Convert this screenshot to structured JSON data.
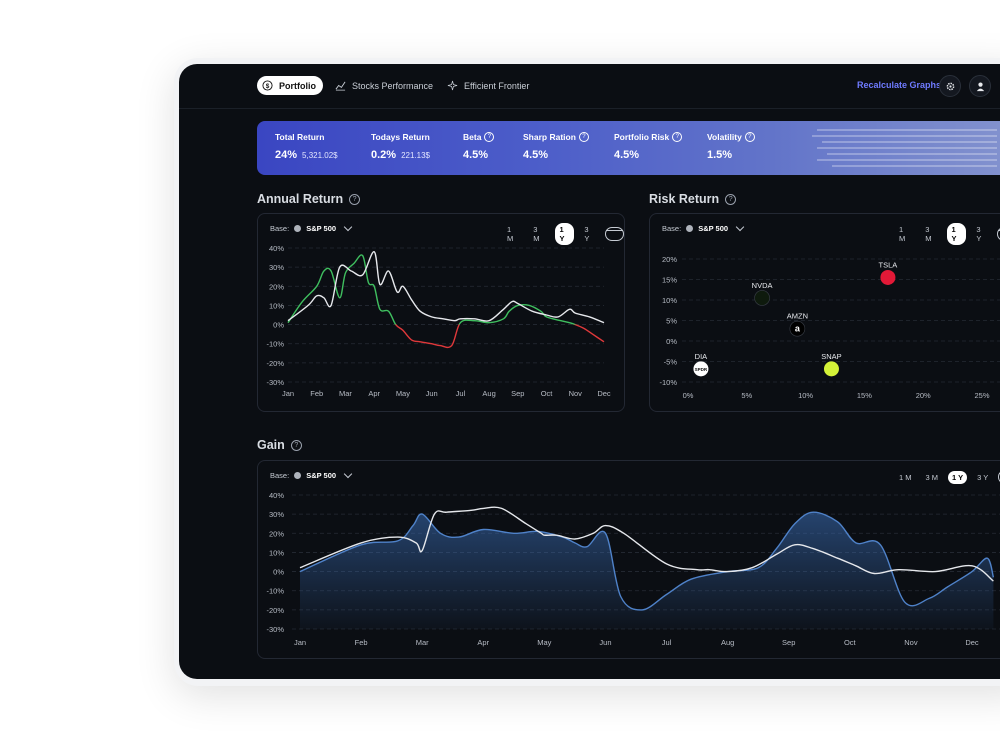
{
  "nav": {
    "tabs": [
      {
        "label": "Portfolio",
        "icon": "dollar-circle-icon",
        "active": true
      },
      {
        "label": "Stocks Performance",
        "icon": "line-chart-icon",
        "active": false
      },
      {
        "label": "Efficient Frontier",
        "icon": "sparkle-icon",
        "active": false
      }
    ],
    "recalculate_label": "Recalculate Graphs",
    "settings_icon": "gear-icon",
    "profile_icon": "user-icon"
  },
  "stats": [
    {
      "label": "Total Return",
      "value": "24%",
      "sub": "5,321.02$",
      "help": false
    },
    {
      "label": "Todays Return",
      "value": "0.2%",
      "sub": "221.13$",
      "help": false
    },
    {
      "label": "Beta",
      "value": "4.5%",
      "sub": "",
      "help": true
    },
    {
      "label": "Sharp Ration",
      "value": "4.5%",
      "sub": "",
      "help": true
    },
    {
      "label": "Portfolio Risk",
      "value": "4.5%",
      "sub": "",
      "help": true
    },
    {
      "label": "Volatility",
      "value": "1.5%",
      "sub": "",
      "help": true
    }
  ],
  "colors": {
    "accent": "#6f7bff",
    "positive": "#3fbf5f",
    "negative": "#e0383a",
    "white_line": "#e6e8ec",
    "gain_area": "#3b6fb8",
    "banner_start": "#3a46c2",
    "banner_end": "#8897cf"
  },
  "annual_return": {
    "title": "Annual Return",
    "base_label": "Base:",
    "base_value": "S&P 500",
    "ranges": [
      "1 M",
      "3 M",
      "1 Y",
      "3 Y"
    ],
    "selected_range": "1 Y"
  },
  "risk_return": {
    "title": "Risk Return",
    "base_label": "Base:",
    "base_value": "S&P 500",
    "ranges": [
      "1 M",
      "3 M",
      "1 Y",
      "3 Y"
    ],
    "selected_range": "1 Y"
  },
  "gain": {
    "title": "Gain",
    "base_label": "Base:",
    "base_value": "S&P 500",
    "ranges": [
      "1 M",
      "3 M",
      "1 Y",
      "3 Y"
    ],
    "selected_range": "1 Y"
  },
  "chart_data": [
    {
      "type": "line",
      "title": "Annual Return",
      "categories": [
        "Jan",
        "Feb",
        "Mar",
        "Apr",
        "May",
        "Jun",
        "Jul",
        "Aug",
        "Sep",
        "Oct",
        "Nov",
        "Dec"
      ],
      "y_ticks": [
        "40%",
        "30%",
        "20%",
        "10%",
        "0%",
        "-10%",
        "-20%",
        "-30%"
      ],
      "ylim": [
        -30,
        40
      ],
      "grid": true,
      "series": [
        {
          "role": "portfolio",
          "x": [
            0,
            0.5,
            1,
            1.25,
            1.5,
            1.8,
            2,
            2.3,
            2.6,
            2.8,
            3,
            3.2,
            3.5,
            3.75,
            4,
            4.3,
            4.6,
            5,
            5.3,
            5.7,
            6,
            6.5,
            7,
            7.5,
            7.7,
            8,
            8.4,
            8.8,
            9,
            9.5,
            9.8,
            10,
            10.3,
            10.6,
            11
          ],
          "values": [
            1,
            12,
            20,
            28,
            28,
            14,
            27,
            32,
            36,
            22,
            20,
            8,
            7,
            0,
            -3,
            -8,
            -9,
            -10,
            -11,
            -11,
            1,
            2,
            1,
            3,
            7,
            10,
            10,
            7,
            4,
            2,
            1,
            0,
            -2,
            -5,
            -9
          ]
        },
        {
          "role": "base",
          "x": [
            0,
            0.7,
            1,
            1.25,
            1.5,
            1.8,
            2.2,
            2.6,
            3,
            3.2,
            3.5,
            3.8,
            4,
            4.3,
            4.6,
            5,
            5.4,
            5.8,
            6,
            6.5,
            7,
            7.5,
            7.8,
            8,
            8.5,
            9,
            9.4,
            9.8,
            10,
            10.5,
            11
          ],
          "values": [
            2,
            10,
            15,
            14,
            10,
            30,
            28,
            26,
            38,
            21,
            28,
            17,
            20,
            13,
            7,
            4,
            3,
            2,
            3,
            3,
            2,
            8,
            12,
            11,
            7,
            5,
            4,
            8,
            6,
            4,
            1
          ]
        }
      ]
    },
    {
      "type": "scatter",
      "title": "Risk Return",
      "x_ticks": [
        "0%",
        "5%",
        "10%",
        "15%",
        "20%",
        "25%"
      ],
      "y_ticks": [
        "20%",
        "15%",
        "10%",
        "5%",
        "0%",
        "-5%",
        "-10%"
      ],
      "xlim": [
        0,
        25
      ],
      "ylim": [
        -10,
        20
      ],
      "grid": true,
      "points": [
        {
          "label": "TSLA",
          "x": 17,
          "y": 15.5,
          "badge_text": "",
          "color": "#e31937"
        },
        {
          "label": "NVDA",
          "x": 6.3,
          "y": 10.5,
          "badge_text": "",
          "color": "#0e1a0d"
        },
        {
          "label": "AMZN",
          "x": 9.3,
          "y": 3,
          "badge_text": "a",
          "color": "#000000"
        },
        {
          "label": "DIA",
          "x": 1.1,
          "y": -6.8,
          "badge_text": "SPDR",
          "color": "#ffffff"
        },
        {
          "label": "SNAP",
          "x": 12.2,
          "y": -6.8,
          "badge_text": "",
          "color": "#d4f238"
        }
      ]
    },
    {
      "type": "area",
      "title": "Gain",
      "categories": [
        "Jan",
        "Feb",
        "Mar",
        "Apr",
        "May",
        "Jun",
        "Jul",
        "Aug",
        "Sep",
        "Oct",
        "Nov",
        "Dec"
      ],
      "y_ticks": [
        "40%",
        "30%",
        "20%",
        "10%",
        "0%",
        "-10%",
        "-20%",
        "-30%"
      ],
      "ylim": [
        -30,
        40
      ],
      "grid": true,
      "series": [
        {
          "role": "portfolio",
          "x": [
            0,
            1,
            1.6,
            1.85,
            2,
            2.3,
            2.6,
            3,
            3.5,
            3.9,
            4.3,
            4.5,
            4.7,
            5,
            5.25,
            5.6,
            6,
            6.4,
            7,
            7.5,
            7.8,
            8.1,
            8.4,
            8.8,
            9.1,
            9.5,
            9.9,
            10.3,
            10.6,
            11,
            11.25,
            11.35
          ],
          "values": [
            0,
            14,
            16,
            24,
            30,
            20,
            18,
            22,
            20,
            21,
            18,
            15,
            13,
            20,
            -13,
            -20,
            -12,
            -4,
            0,
            2,
            12,
            25,
            31,
            26,
            15,
            14,
            -16,
            -14,
            -8,
            0,
            7,
            -3
          ]
        },
        {
          "role": "base",
          "x": [
            0,
            1,
            1.6,
            1.9,
            2,
            2.2,
            2.4,
            2.8,
            3,
            3.3,
            3.7,
            3.95,
            4,
            4.2,
            4.5,
            4.8,
            5,
            5.3,
            6,
            6.5,
            6.7,
            7,
            7.4,
            7.8,
            8.1,
            8.4,
            8.8,
            9.1,
            9.4,
            9.8,
            10.4,
            11,
            11.35
          ],
          "values": [
            2,
            15,
            18,
            15,
            11,
            30,
            31,
            32,
            33,
            33,
            25,
            20,
            19,
            19,
            17,
            20,
            24,
            20,
            4,
            1,
            1,
            0,
            2,
            9,
            14,
            12,
            7,
            3,
            -1,
            1,
            0,
            3,
            -5
          ]
        }
      ]
    }
  ]
}
